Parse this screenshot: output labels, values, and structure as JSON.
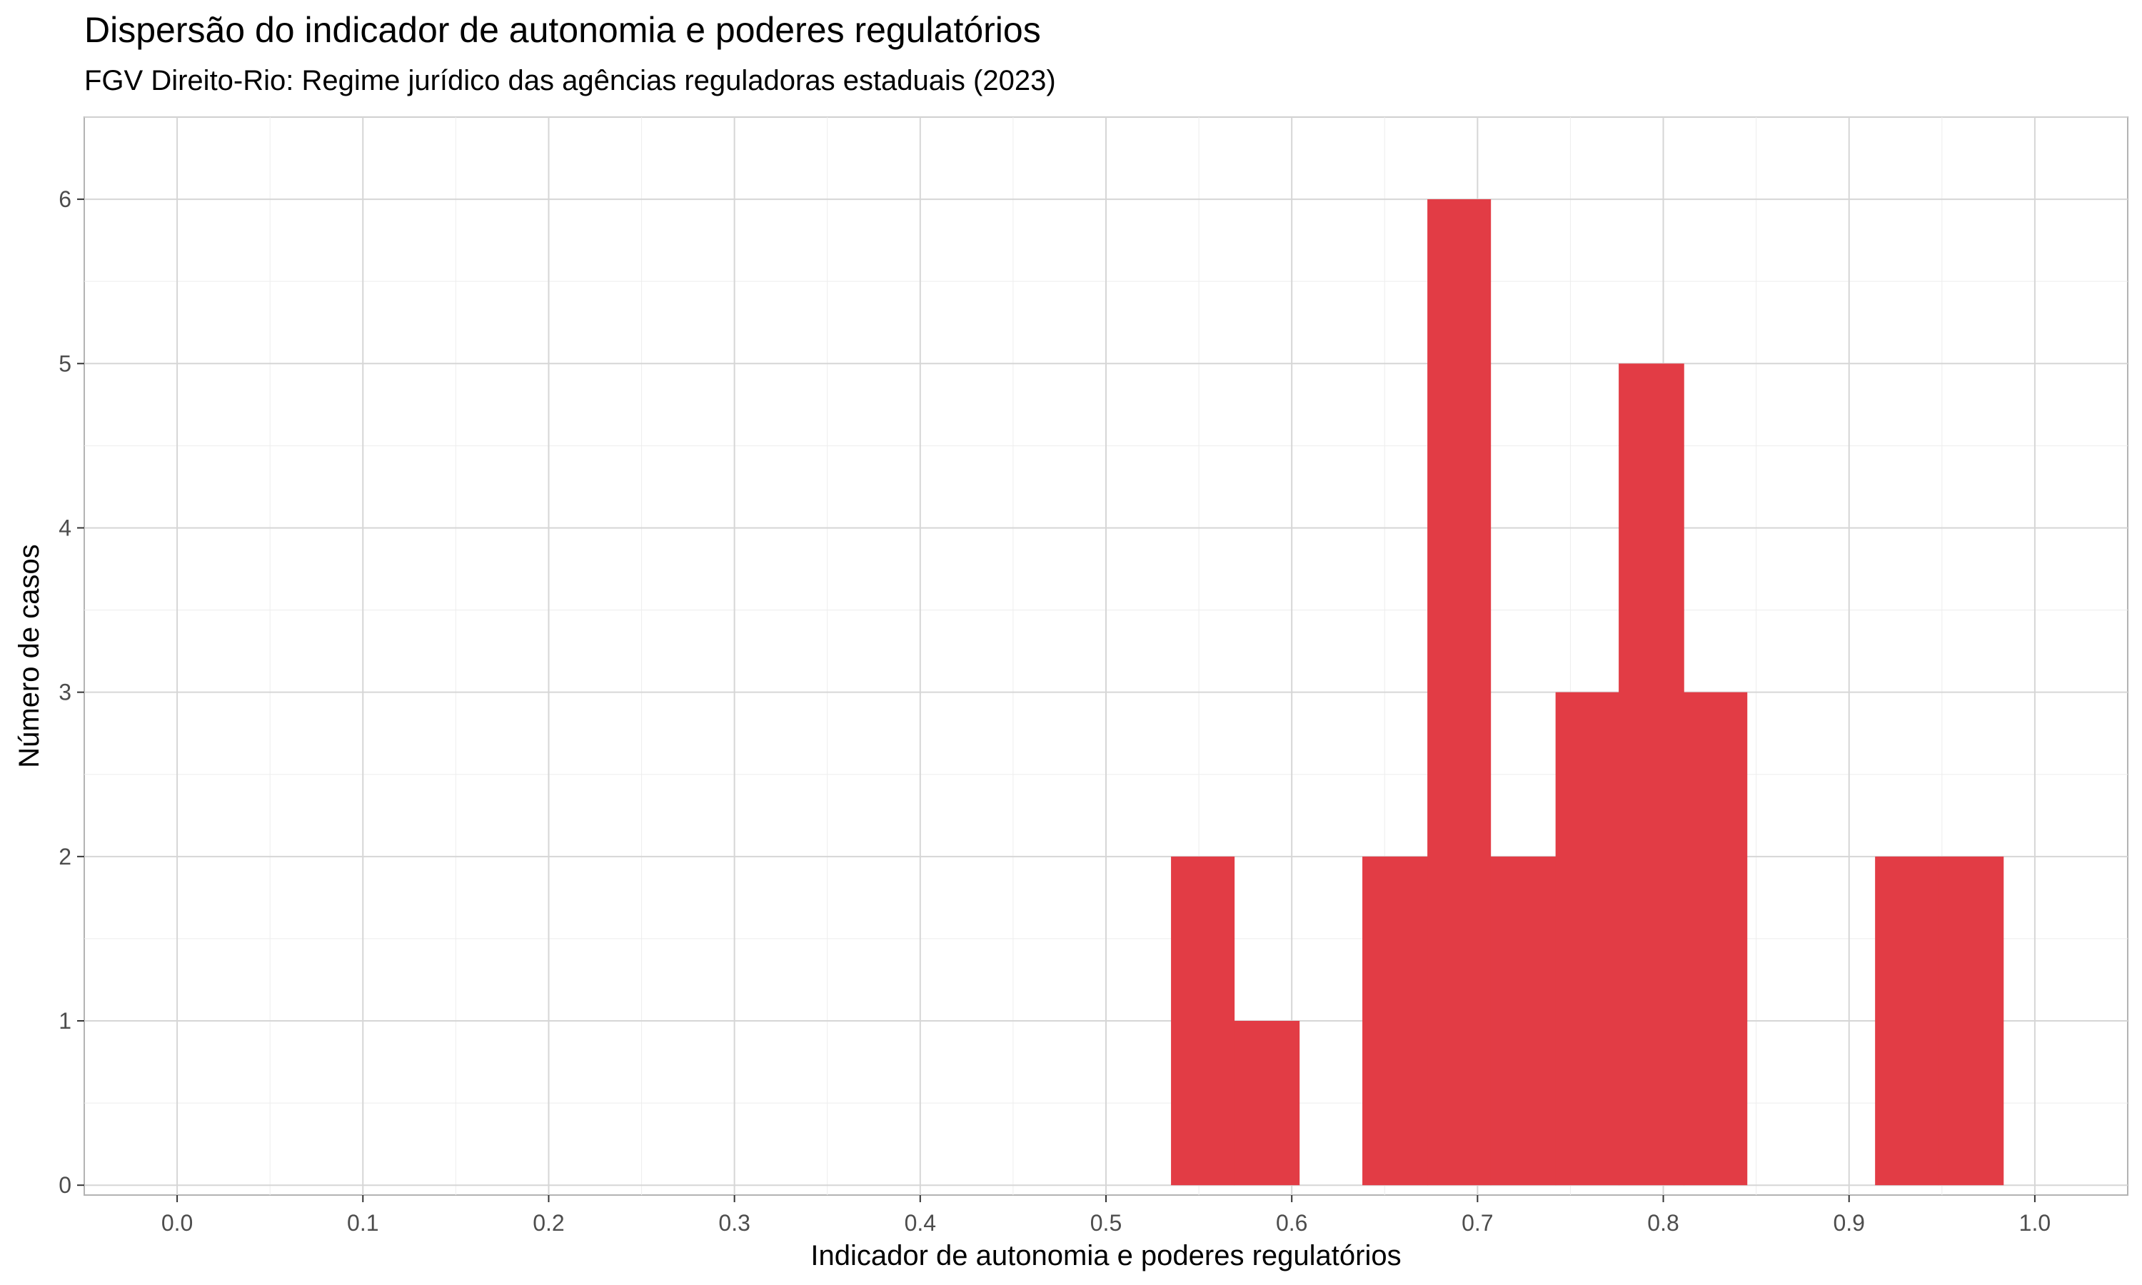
{
  "chart_data": {
    "type": "bar",
    "subtype": "histogram",
    "title": "Dispersão do indicador de autonomia e poderes regulatórios",
    "subtitle": "FGV Direito-Rio: Regime jurídico das agências reguladoras estaduais (2023)",
    "xlabel": "Indicador de autonomia e poderes regulatórios",
    "ylabel": "Número de casos",
    "xlim": [
      -0.05,
      1.05
    ],
    "ylim": [
      -0.06,
      6.5
    ],
    "x_ticks": [
      "0.0",
      "0.1",
      "0.2",
      "0.3",
      "0.4",
      "0.5",
      "0.6",
      "0.7",
      "0.8",
      "0.9",
      "1.0"
    ],
    "y_ticks": [
      "0",
      "1",
      "2",
      "3",
      "4",
      "5",
      "6"
    ],
    "bin_width": 0.0345,
    "bins": [
      {
        "x_start": 0.535,
        "x_end": 0.569,
        "count": 2
      },
      {
        "x_start": 0.569,
        "x_end": 0.604,
        "count": 1
      },
      {
        "x_start": 0.638,
        "x_end": 0.673,
        "count": 2
      },
      {
        "x_start": 0.673,
        "x_end": 0.707,
        "count": 6
      },
      {
        "x_start": 0.707,
        "x_end": 0.742,
        "count": 2
      },
      {
        "x_start": 0.742,
        "x_end": 0.776,
        "count": 3
      },
      {
        "x_start": 0.776,
        "x_end": 0.811,
        "count": 5
      },
      {
        "x_start": 0.811,
        "x_end": 0.845,
        "count": 3
      },
      {
        "x_start": 0.914,
        "x_end": 0.948,
        "count": 2
      },
      {
        "x_start": 0.948,
        "x_end": 0.983,
        "count": 2
      }
    ],
    "bar_color": "#e23c45",
    "grid": true,
    "legend": "none"
  }
}
